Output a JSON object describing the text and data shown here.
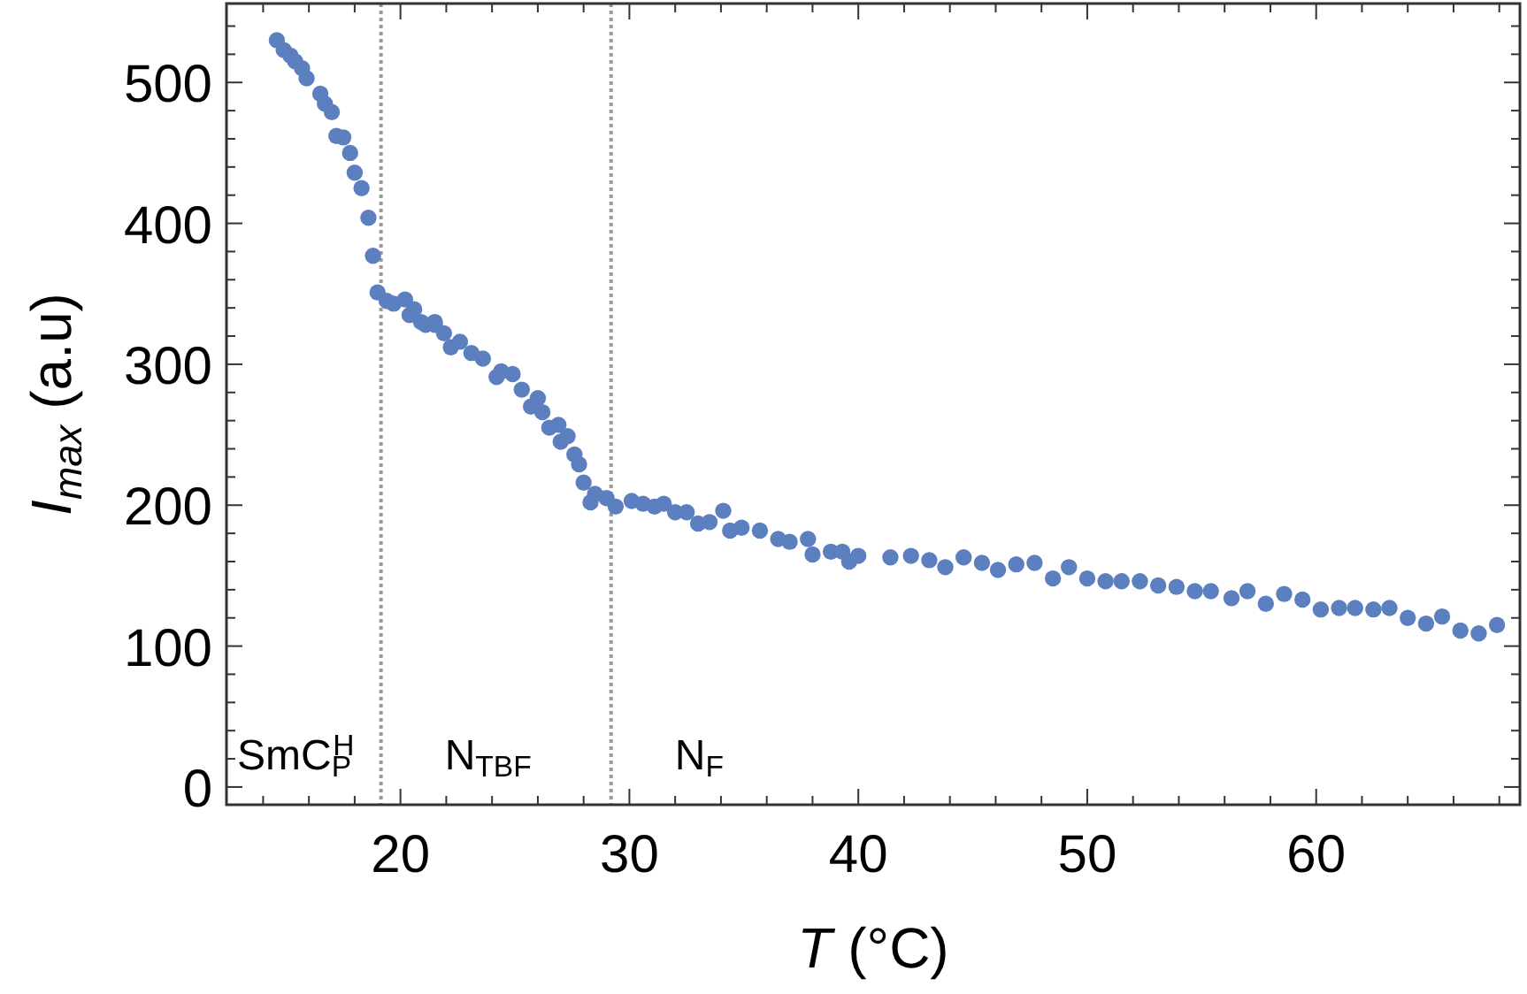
{
  "chart_data": {
    "type": "scatter",
    "xlabel": "T (°C)",
    "ylabel": "I$_{max}$ (a.u)",
    "marker": "circle",
    "grid": false,
    "xlim": [
      12.4,
      68.9
    ],
    "ylim": [
      -12.6,
      556
    ],
    "xticks": [
      {
        "value": 14,
        "label": null
      },
      {
        "value": 16,
        "label": null
      },
      {
        "value": 18,
        "label": null
      },
      20,
      {
        "value": 22,
        "label": null
      },
      {
        "value": 24,
        "label": null
      },
      {
        "value": 26,
        "label": null
      },
      {
        "value": 28,
        "label": null
      },
      30,
      {
        "value": 32,
        "label": null
      },
      {
        "value": 34,
        "label": null
      },
      {
        "value": 36,
        "label": null
      },
      {
        "value": 38,
        "label": null
      },
      40,
      {
        "value": 42,
        "label": null
      },
      {
        "value": 44,
        "label": null
      },
      {
        "value": 46,
        "label": null
      },
      {
        "value": 48,
        "label": null
      },
      50,
      {
        "value": 52,
        "label": null
      },
      {
        "value": 54,
        "label": null
      },
      {
        "value": 56,
        "label": null
      },
      {
        "value": 58,
        "label": null
      },
      60,
      {
        "value": 62,
        "label": null
      },
      {
        "value": 64,
        "label": null
      },
      {
        "value": 66,
        "label": null
      },
      {
        "value": 68,
        "label": null
      }
    ],
    "yticks": [
      0,
      {
        "value": 20,
        "label": null
      },
      {
        "value": 40,
        "label": null
      },
      {
        "value": 60,
        "label": null
      },
      {
        "value": 80,
        "label": null
      },
      100,
      {
        "value": 120,
        "label": null
      },
      {
        "value": 140,
        "label": null
      },
      {
        "value": 160,
        "label": null
      },
      {
        "value": 180,
        "label": null
      },
      200,
      {
        "value": 220,
        "label": null
      },
      {
        "value": 240,
        "label": null
      },
      {
        "value": 260,
        "label": null
      },
      {
        "value": 280,
        "label": null
      },
      300,
      {
        "value": 320,
        "label": null
      },
      {
        "value": 340,
        "label": null
      },
      {
        "value": 360,
        "label": null
      },
      {
        "value": 380,
        "label": null
      },
      400,
      {
        "value": 420,
        "label": null
      },
      {
        "value": 440,
        "label": null
      },
      {
        "value": 460,
        "label": null
      },
      {
        "value": 480,
        "label": null
      },
      500,
      {
        "value": 520,
        "label": null
      },
      {
        "value": 540,
        "label": null
      }
    ],
    "ref_lines": [
      {
        "axis": "x",
        "value": 19.15,
        "color": "#999999",
        "line_style": "dotted"
      },
      {
        "axis": "x",
        "value": 29.2,
        "color": "#999999",
        "line_style": "dotted"
      }
    ],
    "annotations": [
      "SmC$_{P}$$^{H}$",
      "N$_{TBF}$",
      "N$_{F}$"
    ],
    "series": [
      {
        "color": "#5b7fbf",
        "x": [
          14.6,
          14.9,
          15.2,
          15.4,
          15.7,
          15.9,
          16.5,
          16.7,
          17.0,
          17.2,
          17.5,
          17.8,
          18.0,
          18.3,
          18.6,
          18.8,
          19.0,
          19.4,
          19.7,
          20.2,
          20.4,
          20.6,
          20.9,
          21.1,
          21.5,
          21.5,
          21.9,
          22.2,
          22.6,
          23.1,
          23.6,
          24.2,
          24.4,
          24.9,
          25.3,
          25.7,
          26.0,
          26.2,
          26.5,
          26.9,
          27.0,
          27.3,
          27.6,
          27.8,
          28.0,
          28.3,
          28.5,
          29.0,
          29.4,
          30.1,
          30.6,
          31.1,
          31.5,
          32.0,
          32.5,
          33.0,
          33.5,
          34.1,
          34.4,
          34.9,
          35.7,
          36.5,
          37.0,
          37.8,
          38.0,
          38.8,
          39.3,
          39.6,
          40.0,
          41.4,
          42.3,
          43.1,
          43.8,
          44.6,
          45.4,
          46.1,
          46.9,
          47.7,
          48.5,
          49.2,
          50.0,
          50.8,
          51.5,
          52.3,
          53.1,
          53.9,
          54.7,
          55.4,
          56.3,
          57.0,
          57.8,
          58.6,
          59.4,
          60.2,
          61.0,
          61.7,
          62.5,
          63.2,
          64.0,
          64.8,
          65.5,
          66.3,
          67.1,
          67.9
        ],
        "values": [
          530,
          523,
          519,
          515,
          510,
          503,
          492,
          485,
          479,
          462,
          461,
          450,
          436,
          425,
          404,
          377,
          351,
          345,
          343,
          346,
          335,
          339,
          330,
          328,
          328,
          330,
          322,
          312,
          316,
          308,
          304,
          291,
          295,
          293,
          282,
          270,
          276,
          266,
          255,
          257,
          245,
          249,
          236,
          229,
          216,
          202,
          208,
          205,
          199,
          203,
          201,
          199,
          201,
          195,
          195,
          187,
          188,
          196,
          182,
          184,
          182,
          176,
          174,
          176,
          165,
          167,
          167,
          160,
          164,
          163,
          164,
          161,
          156,
          163,
          159,
          154,
          158,
          159,
          148,
          156,
          148,
          146,
          146,
          146,
          143,
          142,
          139,
          139,
          134,
          139,
          130,
          137,
          133,
          126,
          127,
          127,
          126,
          127,
          120,
          116,
          121,
          111,
          109,
          115
        ]
      }
    ]
  }
}
